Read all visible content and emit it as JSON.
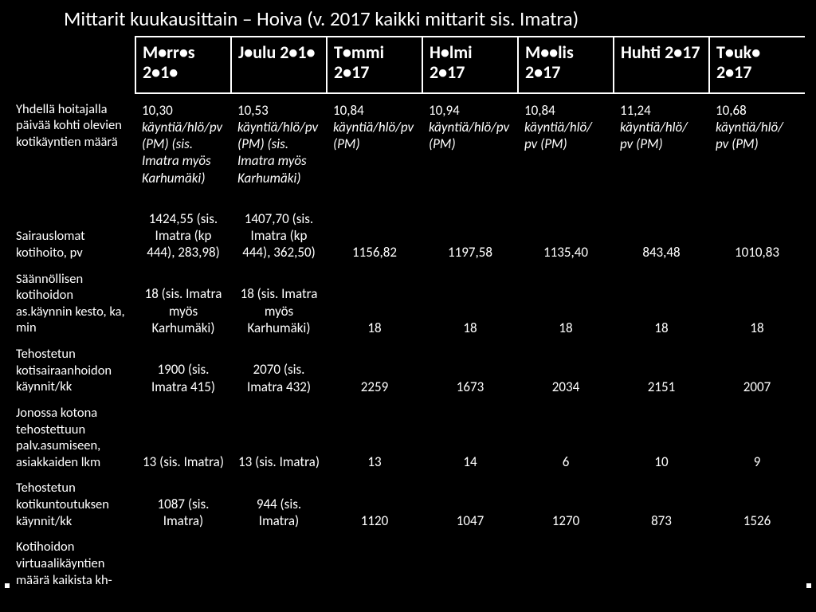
{
  "title": "Mittarit kuukausittain – Hoiva (v. 2017 kaikki mittarit sis. Imatra)",
  "headers": [
    "",
    "M•rr•s 2•1•",
    "J•ulu 2•1•",
    "T•mmi 2•17",
    "H•lmi 2•17",
    "M••lis 2•17",
    "Huhti 2•17",
    "T•uk• 2•17"
  ],
  "rows": [
    {
      "label": "Yhdellä hoitajalla päivää kohti olevien kotikäyntien määrä",
      "cells": [
        {
          "val": "10,30",
          "note": "käyntiä/hlö/pv (PM) (sis. Imatra myös Karhumäki)"
        },
        {
          "val": "10,53",
          "note": "käyntiä/hlö/pv (PM) (sis. Imatra myös Karhumäki)"
        },
        {
          "val": "10,84",
          "note": "käyntiä/hlö/pv (PM)"
        },
        {
          "val": "10,94",
          "note": "käyntiä/hlö/pv (PM)"
        },
        {
          "val": "10,84",
          "note": "käyntiä/hlö/ pv (PM)"
        },
        {
          "val": "11,24",
          "note": "käyntiä/hlö/ pv (PM)"
        },
        {
          "val": "10,68",
          "note": "käyntiä/hlö/ pv (PM)"
        }
      ]
    },
    {
      "label": "Sairauslomat kotihoito, pv",
      "cells": [
        {
          "text": "1424,55 (sis. Imatra (kp 444), 283,98)"
        },
        {
          "text": "1407,70 (sis. Imatra (kp 444), 362,50)"
        },
        {
          "text": "1156,82"
        },
        {
          "text": "1197,58"
        },
        {
          "text": "1135,40"
        },
        {
          "text": "843,48"
        },
        {
          "text": "1010,83"
        }
      ]
    },
    {
      "label": "Säännöllisen kotihoidon as.käynnin kesto, ka, min",
      "cells": [
        {
          "text": "18 (sis. Imatra myös Karhumäki)"
        },
        {
          "text": "18 (sis. Imatra myös Karhumäki)"
        },
        {
          "text": "18"
        },
        {
          "text": "18"
        },
        {
          "text": "18"
        },
        {
          "text": "18"
        },
        {
          "text": "18"
        }
      ]
    },
    {
      "label": "Tehostetun kotisairaanhoidon käynnit/kk",
      "cells": [
        {
          "text": "1900 (sis. Imatra 415)"
        },
        {
          "text": "2070 (sis. Imatra 432)"
        },
        {
          "text": "2259"
        },
        {
          "text": "1673"
        },
        {
          "text": "2034"
        },
        {
          "text": "2151"
        },
        {
          "text": "2007"
        }
      ]
    },
    {
      "label": "Jonossa kotona tehostettuun palv.asumiseen, asiakkaiden lkm",
      "cells": [
        {
          "text": "13 (sis. Imatra)"
        },
        {
          "text": "13 (sis. Imatra)"
        },
        {
          "text": "13"
        },
        {
          "text": "14"
        },
        {
          "text": "6"
        },
        {
          "text": "10"
        },
        {
          "text": "9"
        }
      ]
    },
    {
      "label": "Tehostetun kotikuntoutuksen käynnit/kk",
      "cells": [
        {
          "text": "1087 (sis. Imatra)"
        },
        {
          "text": "944 (sis. Imatra)"
        },
        {
          "text": "1120"
        },
        {
          "text": "1047"
        },
        {
          "text": "1270"
        },
        {
          "text": "873"
        },
        {
          "text": "1526"
        }
      ]
    },
    {
      "label": "Kotihoidon virtuaalikäyntien määrä kaikista kh-",
      "cells": []
    }
  ],
  "colors": {
    "background": "#000000",
    "text": "#ffffff",
    "border": "#ffffff"
  }
}
